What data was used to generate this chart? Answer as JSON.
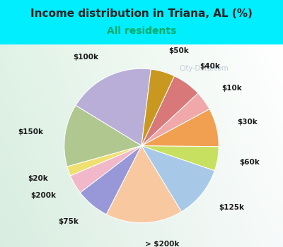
{
  "title": "Income distribution in Triana, AL (%)",
  "subtitle": "All residents",
  "title_bg_color": "#00EEFF",
  "chart_bg_top": "#f0fdf8",
  "chart_bg_bottom": "#c8f0e8",
  "watermark": "City-Data.com",
  "slices": [
    {
      "label": "$100k",
      "value": 18,
      "color": "#b8aed8"
    },
    {
      "label": "$150k",
      "value": 13,
      "color": "#b0c890"
    },
    {
      "label": "$20k",
      "value": 2,
      "color": "#f0e070"
    },
    {
      "label": "$200k",
      "value": 4,
      "color": "#f0b8c8"
    },
    {
      "label": "$75k",
      "value": 7,
      "color": "#9898d8"
    },
    {
      "label": "> $200k",
      "value": 16,
      "color": "#f8c8a0"
    },
    {
      "label": "$125k",
      "value": 11,
      "color": "#a8c8e8"
    },
    {
      "label": "$60k",
      "value": 5,
      "color": "#c8e060"
    },
    {
      "label": "$30k",
      "value": 8,
      "color": "#f0a050"
    },
    {
      "label": "$10k",
      "value": 4,
      "color": "#f0a8a8"
    },
    {
      "label": "$40k",
      "value": 6,
      "color": "#d87878"
    },
    {
      "label": "$50k",
      "value": 5,
      "color": "#c89820"
    }
  ],
  "title_fontsize": 11,
  "subtitle_fontsize": 10,
  "subtitle_color": "#00aa66",
  "label_fontsize": 7.5,
  "title_color": "#222222",
  "watermark_color": "#aabbcc",
  "startangle": 83
}
